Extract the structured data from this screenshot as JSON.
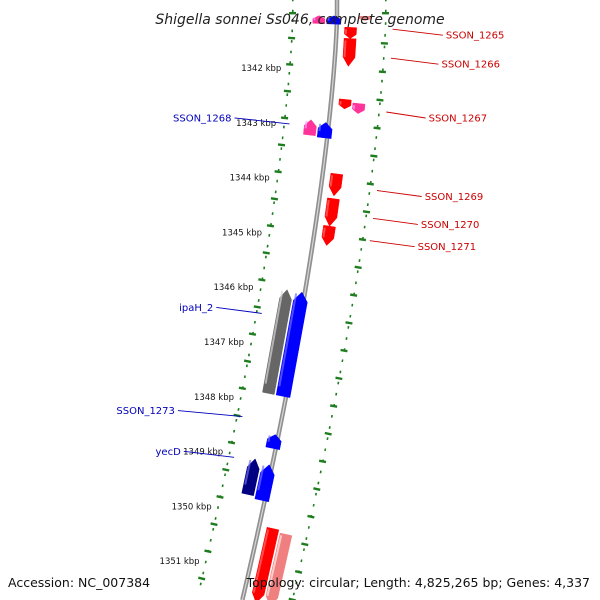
{
  "title": "Shigella sonnei Ss046, complete genome",
  "accession": "Accession: NC_007384",
  "topology": "Topology: circular; Length: 4,825,265 bp; Genes: 4,337",
  "colors": {
    "forward_cds": "#ff0000",
    "reverse_cds": "#0000ff",
    "pink_feature": "#ff3399",
    "dark_feature": "#000080",
    "gray_feature": "#666666",
    "light_red_feature": "#f08080",
    "backbone": "#909090",
    "tick": "#1e7d1e",
    "label_forward": "#cc0000",
    "label_reverse": "#0000bb"
  },
  "ticks": [
    {
      "kbp": 1342,
      "label": "1342 kbp"
    },
    {
      "kbp": 1343,
      "label": "1343 kbp"
    },
    {
      "kbp": 1344,
      "label": "1344 kbp"
    },
    {
      "kbp": 1345,
      "label": "1345 kbp"
    },
    {
      "kbp": 1346,
      "label": "1346 kbp"
    },
    {
      "kbp": 1347,
      "label": "1347 kbp"
    },
    {
      "kbp": 1348,
      "label": "1348 kbp"
    },
    {
      "kbp": 1349,
      "label": "1349 kbp"
    },
    {
      "kbp": 1350,
      "label": "1350 kbp"
    },
    {
      "kbp": 1351,
      "label": "1351 kbp"
    }
  ],
  "genes": [
    {
      "start": 1341.05,
      "end": 1341.2,
      "strand": "reverse",
      "color": "pink_feature"
    },
    {
      "start": 1341.05,
      "end": 1341.2,
      "strand": "reverse",
      "color": "reverse_cds",
      "offset": 1
    },
    {
      "start": 1341.05,
      "end": 1341.12,
      "strand": "forward",
      "color": "light_red_feature",
      "offset": 1
    },
    {
      "start": 1341.25,
      "end": 1341.45,
      "strand": "forward",
      "color": "forward_cds"
    },
    {
      "start": 1341.45,
      "end": 1341.95,
      "strand": "forward",
      "color": "forward_cds"
    },
    {
      "start": 1342.55,
      "end": 1342.72,
      "strand": "forward",
      "color": "forward_cds"
    },
    {
      "start": 1342.6,
      "end": 1342.78,
      "strand": "forward",
      "color": "pink_feature",
      "offset": 1
    },
    {
      "start": 1342.98,
      "end": 1343.26,
      "strand": "reverse",
      "color": "pink_feature"
    },
    {
      "start": 1343.0,
      "end": 1343.28,
      "strand": "reverse",
      "color": "reverse_cds",
      "offset": 1
    },
    {
      "start": 1343.9,
      "end": 1344.3,
      "strand": "forward",
      "color": "forward_cds"
    },
    {
      "start": 1344.35,
      "end": 1344.85,
      "strand": "forward",
      "color": "forward_cds"
    },
    {
      "start": 1344.85,
      "end": 1345.2,
      "strand": "forward",
      "color": "forward_cds"
    },
    {
      "start": 1346.1,
      "end": 1348.0,
      "strand": "reverse",
      "color": "gray_feature"
    },
    {
      "start": 1346.1,
      "end": 1348.0,
      "strand": "reverse",
      "color": "reverse_cds",
      "offset": 1
    },
    {
      "start": 1348.7,
      "end": 1348.95,
      "strand": "reverse",
      "color": "reverse_cds",
      "offset": 1
    },
    {
      "start": 1349.2,
      "end": 1349.85,
      "strand": "reverse",
      "color": "dark_feature"
    },
    {
      "start": 1349.25,
      "end": 1349.9,
      "strand": "reverse",
      "color": "reverse_cds",
      "offset": 1
    },
    {
      "start": 1350.35,
      "end": 1351.7,
      "strand": "forward",
      "color": "forward_cds"
    },
    {
      "start": 1350.4,
      "end": 1351.7,
      "strand": "forward",
      "color": "light_red_feature",
      "offset": 1
    }
  ],
  "gene_labels": [
    {
      "text": "SSON_1265",
      "at": 1341.25,
      "side": "right",
      "color": "label_forward",
      "dx": 95
    },
    {
      "text": "SSON_1266",
      "at": 1341.75,
      "side": "right",
      "color": "label_forward",
      "dx": 90
    },
    {
      "text": "SSON_1267",
      "at": 1342.7,
      "side": "right",
      "color": "label_forward",
      "dx": 75
    },
    {
      "text": "SSON_1268",
      "at": 1343.1,
      "side": "left",
      "color": "label_reverse",
      "dx": 60
    },
    {
      "text": "SSON_1269",
      "at": 1344.1,
      "side": "right",
      "color": "label_forward",
      "dx": 85
    },
    {
      "text": "SSON_1270",
      "at": 1344.6,
      "side": "right",
      "color": "label_forward",
      "dx": 85
    },
    {
      "text": "SSON_1271",
      "at": 1345.0,
      "side": "right",
      "color": "label_forward",
      "dx": 85
    },
    {
      "text": "ipaH_2",
      "at": 1346.6,
      "side": "left",
      "color": "label_reverse",
      "dx": 50
    },
    {
      "text": "SSON_1273",
      "at": 1348.5,
      "side": "left",
      "color": "label_reverse",
      "dx": 70
    },
    {
      "text": "yecD",
      "at": 1349.25,
      "side": "left",
      "color": "label_reverse",
      "dx": 55
    }
  ]
}
